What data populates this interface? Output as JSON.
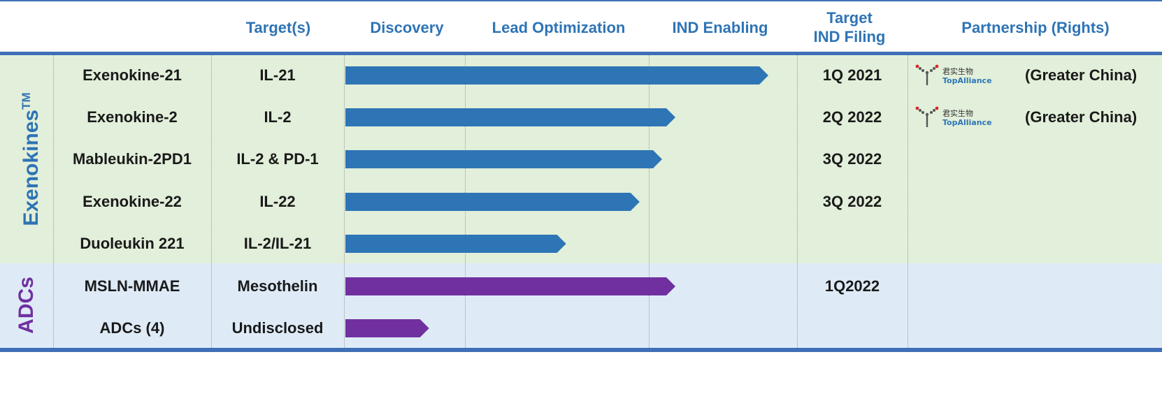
{
  "headers": {
    "targets": "Target(s)",
    "discovery": "Discovery",
    "lead_optimization": "Lead Optimization",
    "ind_enabling": "IND Enabling",
    "target_ind_line1": "Target",
    "target_ind_line2": "IND Filing",
    "partnership": "Partnership (Rights)"
  },
  "groups": [
    {
      "label": "Exenokines",
      "superscript": "TM",
      "color": "#2e74b5"
    },
    {
      "label": "ADCs",
      "superscript": "",
      "color": "#7030a0"
    }
  ],
  "stage_scale": {
    "stages": [
      "Discovery",
      "Lead Optimization",
      "IND Enabling"
    ],
    "note": "bar progress measured in stage units, 0 = start of Discovery, 3 = end of IND Enabling"
  },
  "rows": [
    {
      "program": "Exenokine-21",
      "target": "IL-21",
      "progress": 2.9,
      "ind_filing": "1Q 2021",
      "color": "#2e75b6",
      "partner": {
        "logo_cn": "君实生物",
        "logo_en": "TopAlliance",
        "rights": "(Greater China)"
      }
    },
    {
      "program": "Exenokine-2",
      "target": "IL-2",
      "progress": 2.2,
      "ind_filing": "2Q 2022",
      "color": "#2e75b6",
      "partner": {
        "logo_cn": "君实生物",
        "logo_en": "TopAlliance",
        "rights": "(Greater China)"
      }
    },
    {
      "program": "Mableukin-2PD1",
      "target": "IL-2 & PD-1",
      "progress": 2.1,
      "ind_filing": "3Q 2022",
      "color": "#2e75b6",
      "partner": null
    },
    {
      "program": "Exenokine-22",
      "target": "IL-22",
      "progress": 1.95,
      "ind_filing": "3Q 2022",
      "color": "#2e75b6",
      "partner": null
    },
    {
      "program": "Duoleukin 221",
      "target": "IL-2/IL-21",
      "progress": 1.55,
      "ind_filing": "",
      "color": "#2e75b6",
      "partner": null
    },
    {
      "program": "MSLN-MMAE",
      "target": "Mesothelin",
      "progress": 2.2,
      "ind_filing": "1Q2022",
      "color": "#7030a0",
      "partner": null
    },
    {
      "program": "ADCs (4)",
      "target": "Undisclosed",
      "progress": 0.7,
      "ind_filing": "",
      "color": "#7030a0",
      "partner": null
    }
  ]
}
